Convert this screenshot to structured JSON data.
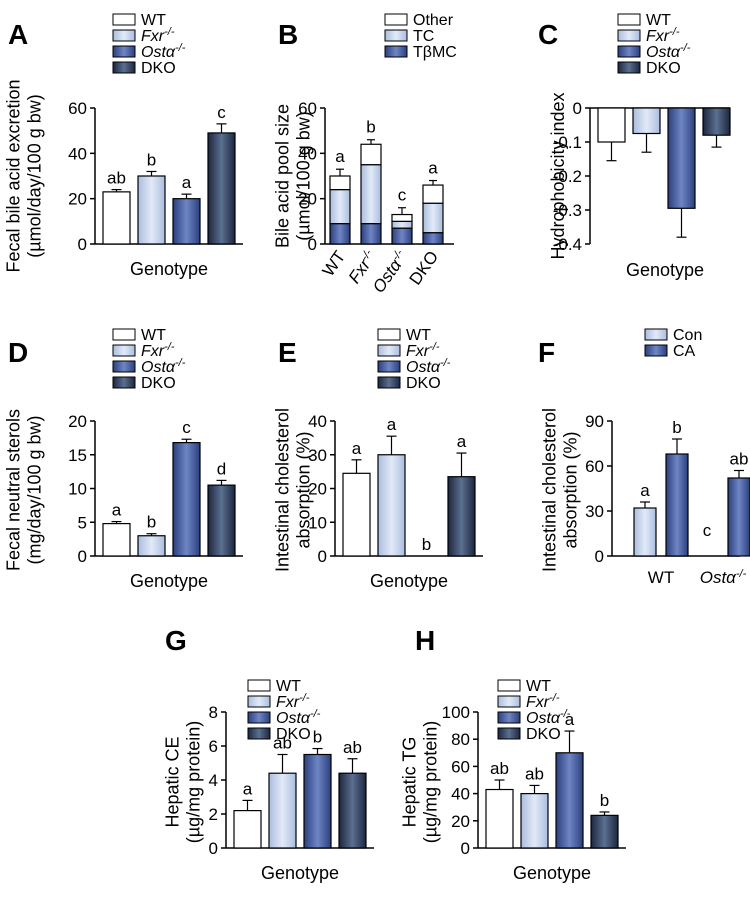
{
  "colors": {
    "wt": "#ffffff",
    "fxr": "#c8d6ef",
    "osta": "#3c5496",
    "dko": "#2c3d5a",
    "other": "#ffffff",
    "tc": "#c8d6ef",
    "tbmc": "#3c5496",
    "con": "#c8d6ef",
    "ca": "#3c5496"
  },
  "chart_data": [
    {
      "panel": "A",
      "type": "bar",
      "ylabel": [
        "Fecal bile acid excretion",
        "(µmol/day/100 g bw)"
      ],
      "xlabel": "Genotype",
      "ylim": [
        0,
        60
      ],
      "yticks": [
        0,
        20,
        40,
        60
      ],
      "ytick_labels": [
        "0",
        "20",
        "40",
        "60"
      ],
      "legend": [
        {
          "label": "WT",
          "key": "wt"
        },
        {
          "label": "Fxr",
          "sup": "-/-",
          "italic": true,
          "key": "fxr"
        },
        {
          "label": "Ostα",
          "sup": "-/-",
          "italic": true,
          "key": "osta"
        },
        {
          "label": "DKO",
          "key": "dko"
        }
      ],
      "bars": [
        {
          "name": "WT",
          "value": 23,
          "err": 1,
          "sig": "ab",
          "key": "wt"
        },
        {
          "name": "Fxr-/-",
          "value": 30,
          "err": 2,
          "sig": "b",
          "key": "fxr"
        },
        {
          "name": "Osta-/-",
          "value": 20,
          "err": 2,
          "sig": "a",
          "key": "osta"
        },
        {
          "name": "DKO",
          "value": 49,
          "err": 4,
          "sig": "c",
          "key": "dko"
        }
      ]
    },
    {
      "panel": "B",
      "type": "stacked_bar",
      "ylabel": [
        "Bile acid pool size",
        "(µmol/100 g bw)"
      ],
      "ylim": [
        0,
        60
      ],
      "yticks": [
        0,
        20,
        40,
        60
      ],
      "ytick_labels": [
        "0",
        "20",
        "40",
        "60"
      ],
      "legend": [
        {
          "label": "Other",
          "key": "other"
        },
        {
          "label": "TC",
          "key": "tc"
        },
        {
          "label": "TβMC",
          "key": "tbmc"
        }
      ],
      "categories": [
        {
          "label": "WT"
        },
        {
          "label": "Fxr",
          "sup": "-/-",
          "italic": true
        },
        {
          "label": "Ostα",
          "sup": "-/-",
          "italic": true
        },
        {
          "label": "DKO"
        }
      ],
      "stacks": [
        {
          "tbmc": 9,
          "tc": 15,
          "other": 6,
          "err": 3,
          "sig": "a"
        },
        {
          "tbmc": 9,
          "tc": 26,
          "other": 9,
          "err": 2,
          "sig": "b"
        },
        {
          "tbmc": 7,
          "tc": 3,
          "other": 3,
          "err": 3,
          "sig": "c"
        },
        {
          "tbmc": 5,
          "tc": 13,
          "other": 8,
          "err": 2,
          "sig": "a"
        }
      ]
    },
    {
      "panel": "C",
      "type": "bar",
      "ylabel": [
        "Hydrophobicity index"
      ],
      "xlabel": "Genotype",
      "ylim": [
        -0.4,
        0
      ],
      "yticks": [
        0,
        -0.1,
        -0.2,
        -0.3,
        -0.4
      ],
      "ytick_labels": [
        "0",
        "-0.1",
        "-0.2",
        "-0.3",
        "-0.4"
      ],
      "legend": [
        {
          "label": "WT",
          "key": "wt"
        },
        {
          "label": "Fxr",
          "sup": "-/-",
          "italic": true,
          "key": "fxr"
        },
        {
          "label": "Ostα",
          "sup": "-/-",
          "italic": true,
          "key": "osta"
        },
        {
          "label": "DKO",
          "key": "dko"
        }
      ],
      "bars": [
        {
          "name": "WT",
          "value": -0.1,
          "err": 0.055,
          "sig": "",
          "key": "wt"
        },
        {
          "name": "Fxr-/-",
          "value": -0.075,
          "err": 0.055,
          "sig": "",
          "key": "fxr"
        },
        {
          "name": "Osta-/-",
          "value": -0.295,
          "err": 0.085,
          "sig": "",
          "key": "osta"
        },
        {
          "name": "DKO",
          "value": -0.08,
          "err": 0.035,
          "sig": "",
          "key": "dko"
        }
      ]
    },
    {
      "panel": "D",
      "type": "bar",
      "ylabel": [
        "Fecal neutral sterols",
        "(mg/day/100 g bw)"
      ],
      "xlabel": "Genotype",
      "ylim": [
        0,
        20
      ],
      "yticks": [
        0,
        5,
        10,
        15,
        20
      ],
      "ytick_labels": [
        "0",
        "5",
        "10",
        "15",
        "20"
      ],
      "legend": [
        {
          "label": "WT",
          "key": "wt"
        },
        {
          "label": "Fxr",
          "sup": "-/-",
          "italic": true,
          "key": "fxr"
        },
        {
          "label": "Ostα",
          "sup": "-/-",
          "italic": true,
          "key": "osta"
        },
        {
          "label": "DKO",
          "key": "dko"
        }
      ],
      "bars": [
        {
          "name": "WT",
          "value": 4.8,
          "err": 0.3,
          "sig": "a",
          "key": "wt"
        },
        {
          "name": "Fxr-/-",
          "value": 3.0,
          "err": 0.3,
          "sig": "b",
          "key": "fxr"
        },
        {
          "name": "Osta-/-",
          "value": 16.8,
          "err": 0.5,
          "sig": "c",
          "key": "osta"
        },
        {
          "name": "DKO",
          "value": 10.5,
          "err": 0.7,
          "sig": "d",
          "key": "dko"
        }
      ]
    },
    {
      "panel": "E",
      "type": "bar",
      "ylabel": [
        "Intestinal cholesterol",
        "absorption (%)"
      ],
      "xlabel": "Genotype",
      "ylim": [
        0,
        40
      ],
      "yticks": [
        0,
        10,
        20,
        30,
        40
      ],
      "ytick_labels": [
        "0",
        "10",
        "20",
        "30",
        "40"
      ],
      "legend": [
        {
          "label": "WT",
          "key": "wt"
        },
        {
          "label": "Fxr",
          "sup": "-/-",
          "italic": true,
          "key": "fxr"
        },
        {
          "label": "Ostα",
          "sup": "-/-",
          "italic": true,
          "key": "osta"
        },
        {
          "label": "DKO",
          "key": "dko"
        }
      ],
      "bars": [
        {
          "name": "WT",
          "value": 24.5,
          "err": 4,
          "sig": "a",
          "key": "wt"
        },
        {
          "name": "Fxr-/-",
          "value": 30,
          "err": 5.5,
          "sig": "a",
          "key": "fxr"
        },
        {
          "name": "Osta-/-",
          "value": 0,
          "err": 0,
          "sig": "b",
          "key": "osta"
        },
        {
          "name": "DKO",
          "value": 23.5,
          "err": 7,
          "sig": "a",
          "key": "dko"
        }
      ]
    },
    {
      "panel": "F",
      "type": "grouped_bar",
      "ylabel": [
        "Intestinal cholesterol",
        "absorption (%)"
      ],
      "ylim": [
        0,
        90
      ],
      "yticks": [
        0,
        30,
        60,
        90
      ],
      "ytick_labels": [
        "0",
        "30",
        "60",
        "90"
      ],
      "legend": [
        {
          "label": "Con",
          "key": "con"
        },
        {
          "label": "CA",
          "key": "ca"
        }
      ],
      "groups": [
        {
          "label": "WT",
          "italic": false,
          "sup": "",
          "bars": [
            {
              "series": "Con",
              "value": 32,
              "err": 4,
              "sig": "a",
              "key": "con"
            },
            {
              "series": "CA",
              "value": 68,
              "err": 10,
              "sig": "b",
              "key": "ca"
            }
          ]
        },
        {
          "label": "Ostα",
          "italic": true,
          "sup": "-/-",
          "bars": [
            {
              "series": "Con",
              "value": 0,
              "err": 0,
              "sig": "c",
              "key": "con"
            },
            {
              "series": "CA",
              "value": 52,
              "err": 5,
              "sig": "ab",
              "key": "ca"
            }
          ]
        }
      ]
    },
    {
      "panel": "G",
      "type": "bar",
      "ylabel": [
        "Hepatic CE",
        "(µg/mg protein)"
      ],
      "xlabel": "Genotype",
      "ylim": [
        0,
        8
      ],
      "yticks": [
        0,
        2,
        4,
        6,
        8
      ],
      "ytick_labels": [
        "0",
        "2",
        "4",
        "6",
        "8"
      ],
      "legend": [
        {
          "label": "WT",
          "key": "wt"
        },
        {
          "label": "Fxr",
          "sup": "-/-",
          "italic": true,
          "key": "fxr"
        },
        {
          "label": "Ostα",
          "sup": "-/-",
          "italic": true,
          "key": "osta"
        },
        {
          "label": "DKO",
          "key": "dko"
        }
      ],
      "bars": [
        {
          "name": "WT",
          "value": 2.2,
          "err": 0.6,
          "sig": "a",
          "key": "wt"
        },
        {
          "name": "Fxr-/-",
          "value": 4.4,
          "err": 1.1,
          "sig": "ab",
          "key": "fxr"
        },
        {
          "name": "Osta-/-",
          "value": 5.5,
          "err": 0.35,
          "sig": "b",
          "key": "osta"
        },
        {
          "name": "DKO",
          "value": 4.4,
          "err": 0.85,
          "sig": "ab",
          "key": "dko"
        }
      ]
    },
    {
      "panel": "H",
      "type": "bar",
      "ylabel": [
        "Hepatic TG",
        "(µg/mg protein)"
      ],
      "xlabel": "Genotype",
      "ylim": [
        0,
        100
      ],
      "yticks": [
        0,
        20,
        40,
        60,
        80,
        100
      ],
      "ytick_labels": [
        "0",
        "20",
        "40",
        "60",
        "80",
        "100"
      ],
      "legend": [
        {
          "label": "WT",
          "key": "wt"
        },
        {
          "label": "Fxr",
          "sup": "-/-",
          "italic": true,
          "key": "fxr"
        },
        {
          "label": "Ostα",
          "sup": "-/-",
          "italic": true,
          "key": "osta"
        },
        {
          "label": "DKO",
          "key": "dko"
        }
      ],
      "bars": [
        {
          "name": "WT",
          "value": 43,
          "err": 7,
          "sig": "ab",
          "key": "wt"
        },
        {
          "name": "Fxr-/-",
          "value": 40,
          "err": 6,
          "sig": "ab",
          "key": "fxr"
        },
        {
          "name": "Osta-/-",
          "value": 70,
          "err": 16,
          "sig": "a",
          "key": "osta"
        },
        {
          "name": "DKO",
          "value": 24,
          "err": 2.5,
          "sig": "b",
          "key": "dko"
        }
      ]
    }
  ]
}
